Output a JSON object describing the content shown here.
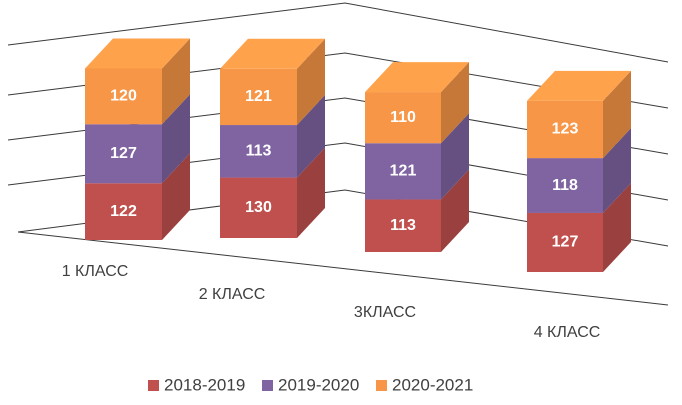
{
  "chart_data": {
    "type": "bar3d_stacked",
    "categories": [
      "1 КЛАСС",
      "2 КЛАСС",
      "3КЛАСС",
      "4 КЛАСС"
    ],
    "series": [
      {
        "name": "2018-2019",
        "color": "#c0504d",
        "values": [
          122,
          130,
          113,
          127
        ]
      },
      {
        "name": "2019-2020",
        "color": "#8064a2",
        "values": [
          127,
          113,
          121,
          118
        ]
      },
      {
        "name": "2020-2021",
        "color": "#f79646",
        "values": [
          120,
          121,
          110,
          123
        ]
      }
    ],
    "ylim": [
      0,
      370
    ],
    "legend": "bottom"
  }
}
